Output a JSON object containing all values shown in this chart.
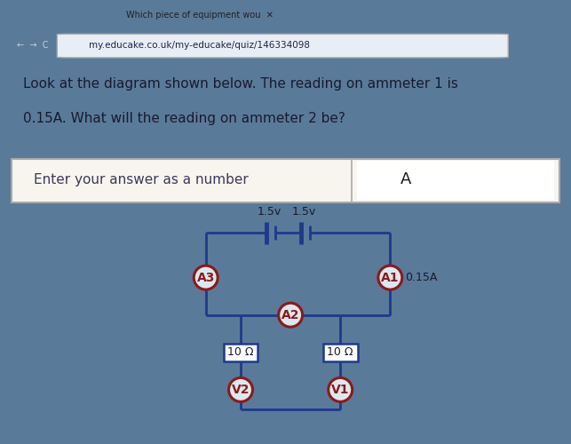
{
  "bg_browser": "#5a7a9a",
  "bg_tab_bar": "#8aa8c0",
  "bg_question": "#f0ece0",
  "bg_answer": "#f8f5ee",
  "bg_circuit": "#dce8f0",
  "bg_dark_strip": "#3a4a5a",
  "url_text": "my.educake.co.uk/my-educake/quiz/146334098",
  "tab_text": "Which piece of equipment wou",
  "question_line1": "Look at the diagram shown below. The reading on ammeter 1 is",
  "question_line2": "0.15A. What will the reading on ammeter 2 be?",
  "answer_prompt": "Enter your answer as a number",
  "answer_unit": "A",
  "battery_label1": "1.5v",
  "battery_label2": "1.5v",
  "res1_label": "10 Ω",
  "res2_label": "10 Ω",
  "a1_label": "A1",
  "a2_label": "A2",
  "a3_label": "A3",
  "v1_label": "V1",
  "v2_label": "V2",
  "a1_reading": "0.15A",
  "wire_color": "#1e3a8a",
  "circle_border": "#8b1a1a",
  "circle_bg": "#dce8f0",
  "resistor_fill": "#ffffff",
  "text_dark": "#1a1a2e",
  "text_question": "#1a1a2e",
  "answer_text_color": "#3a3a5a"
}
